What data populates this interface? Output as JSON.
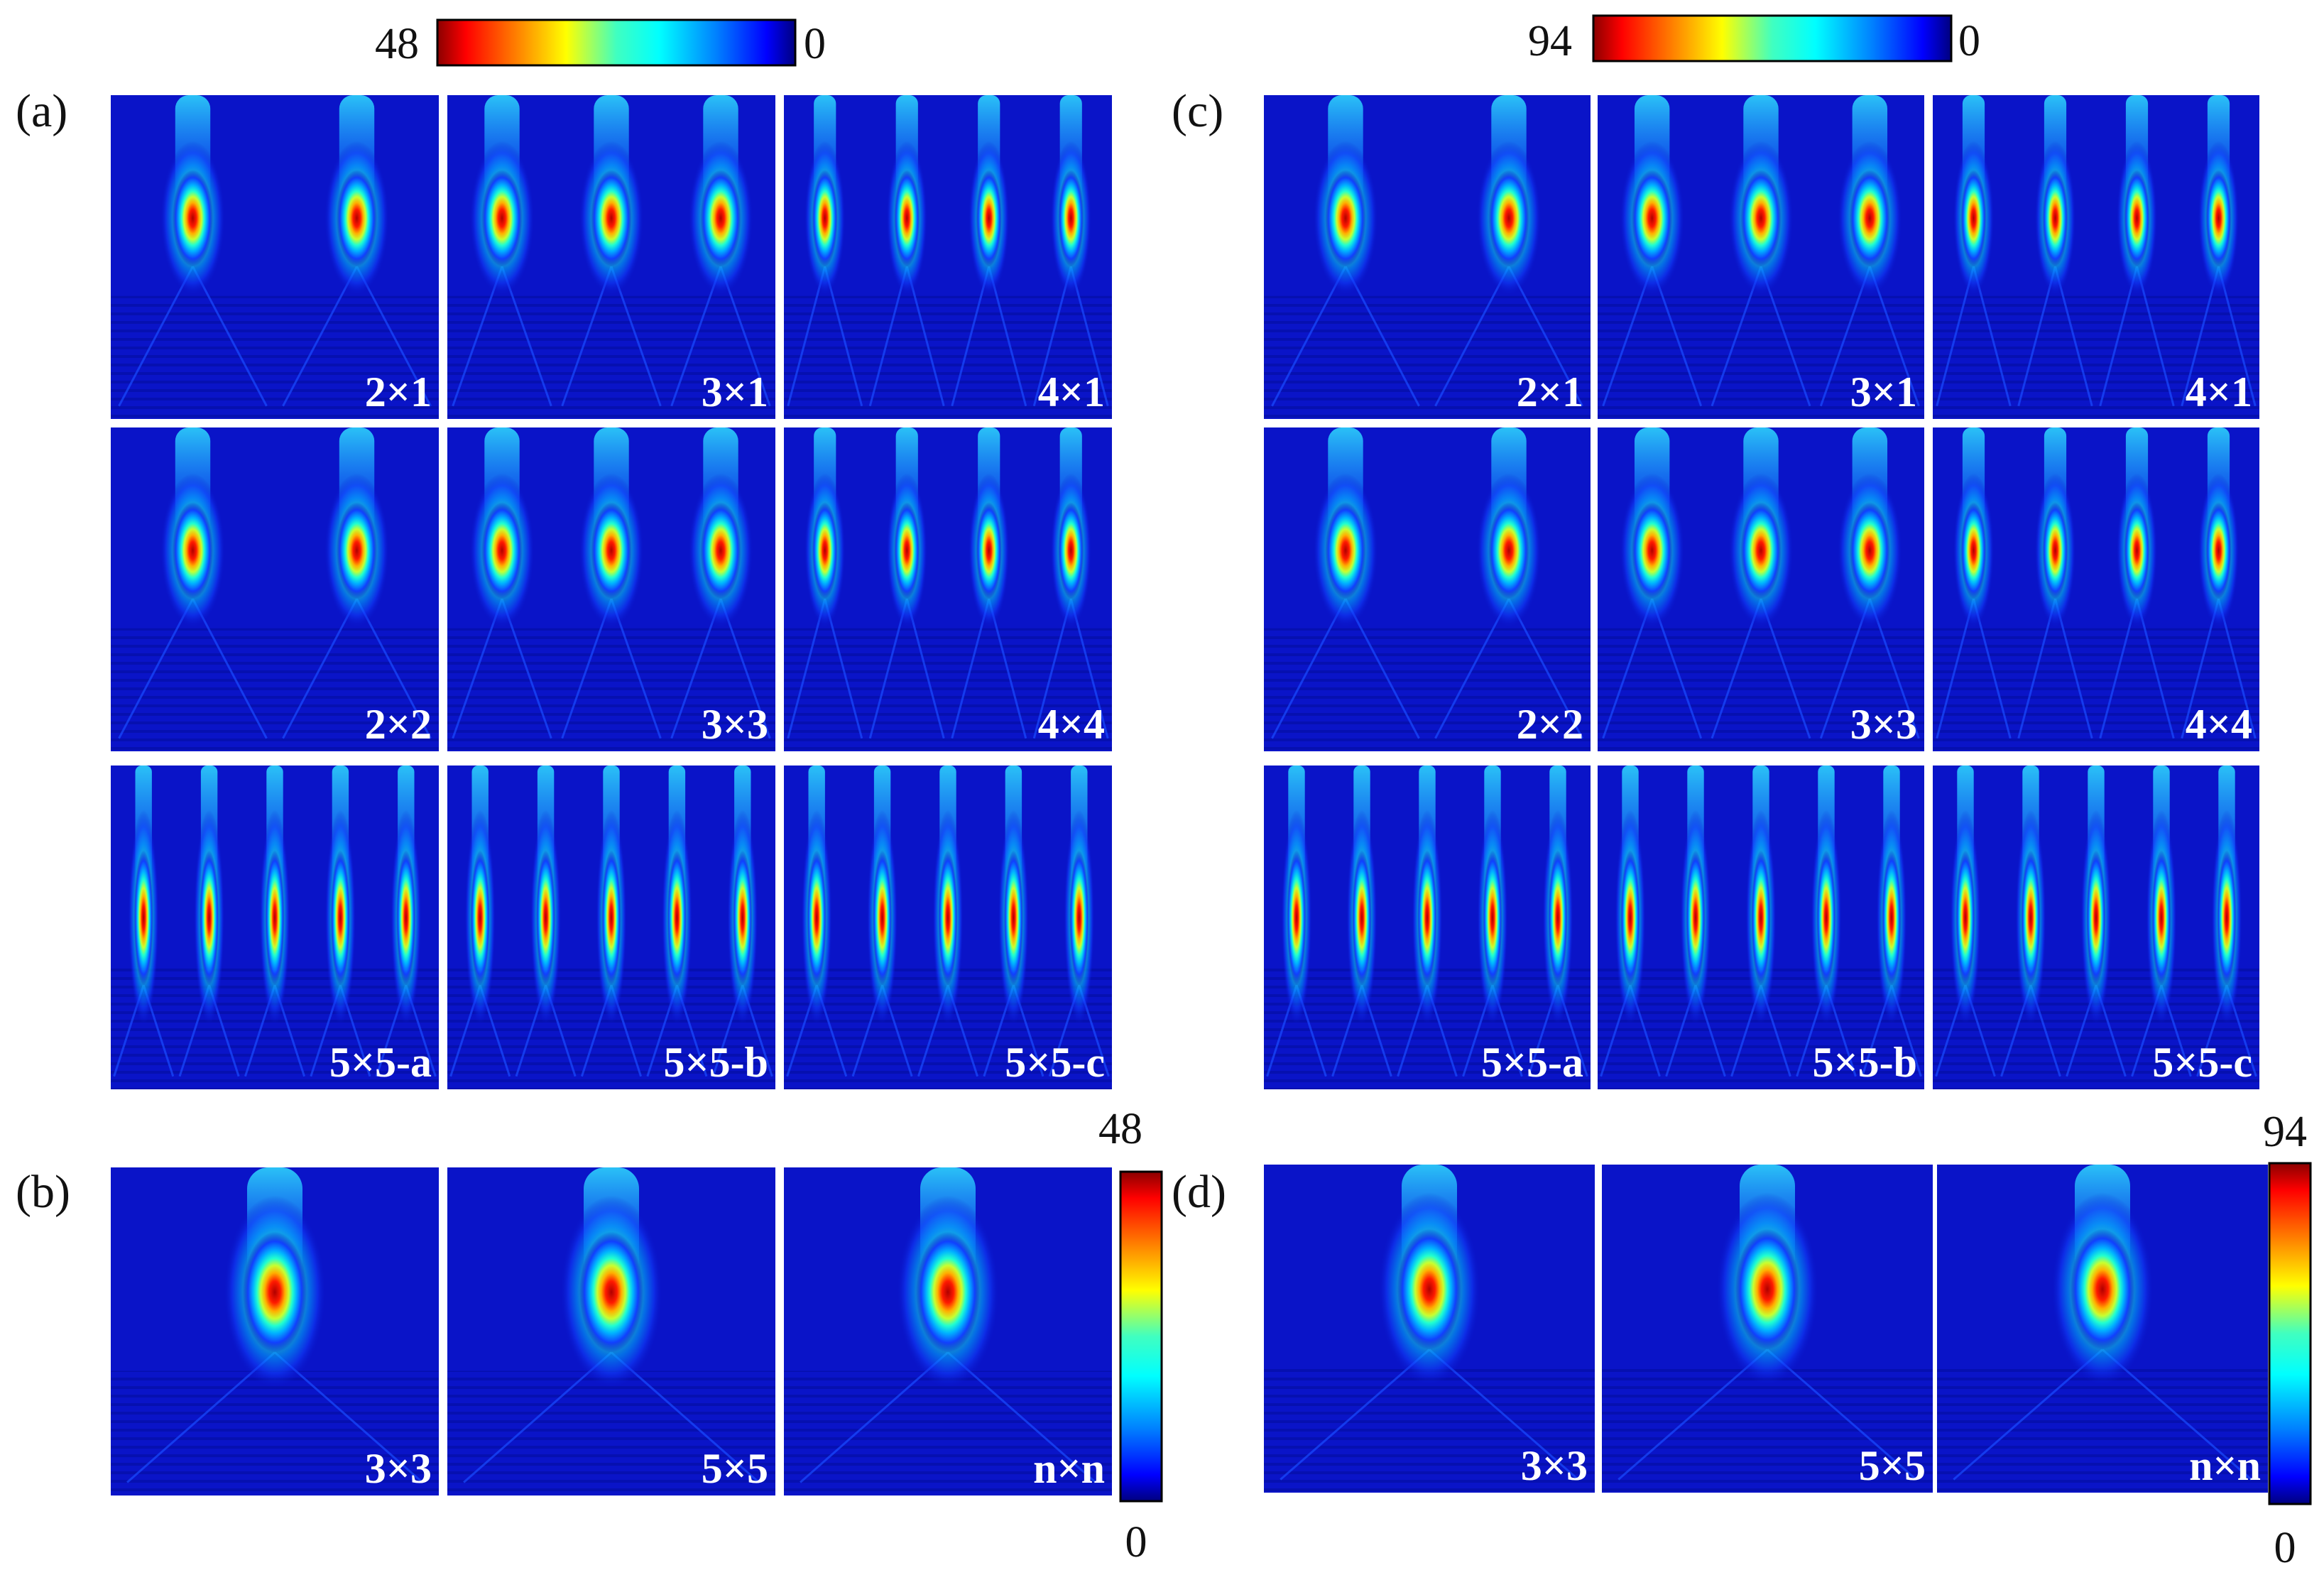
{
  "figure": {
    "panels": [
      {
        "letter": "(a)",
        "color_max": "48",
        "color_min": "0",
        "labels": [
          "2×1",
          "3×1",
          "4×1",
          "2×2",
          "3×3",
          "4×4",
          "5×5-a",
          "5×5-b",
          "5×5-c"
        ],
        "foci_per_panel": [
          2,
          3,
          4,
          2,
          3,
          4,
          5,
          5,
          5
        ]
      },
      {
        "letter": "(b)",
        "color_max": "48",
        "color_min": "0",
        "labels": [
          "3×3",
          "5×5",
          "n×n"
        ],
        "foci_per_panel": [
          1,
          1,
          1
        ]
      },
      {
        "letter": "(c)",
        "color_max": "94",
        "color_min": "0",
        "labels": [
          "2×1",
          "3×1",
          "4×1",
          "2×2",
          "3×3",
          "4×4",
          "5×5-a",
          "5×5-b",
          "5×5-c"
        ],
        "foci_per_panel": [
          2,
          3,
          4,
          2,
          3,
          4,
          5,
          5,
          5
        ]
      },
      {
        "letter": "(d)",
        "color_max": "94",
        "color_min": "0",
        "labels": [
          "3×3",
          "5×5",
          "n×n"
        ],
        "foci_per_panel": [
          1,
          1,
          1
        ]
      }
    ],
    "colormap": [
      "#00007f",
      "#0000ff",
      "#007fff",
      "#00ffff",
      "#7fff7f",
      "#ffff00",
      "#ff7f00",
      "#ff0000",
      "#7f0000"
    ],
    "background_color": "#0a14c8"
  }
}
